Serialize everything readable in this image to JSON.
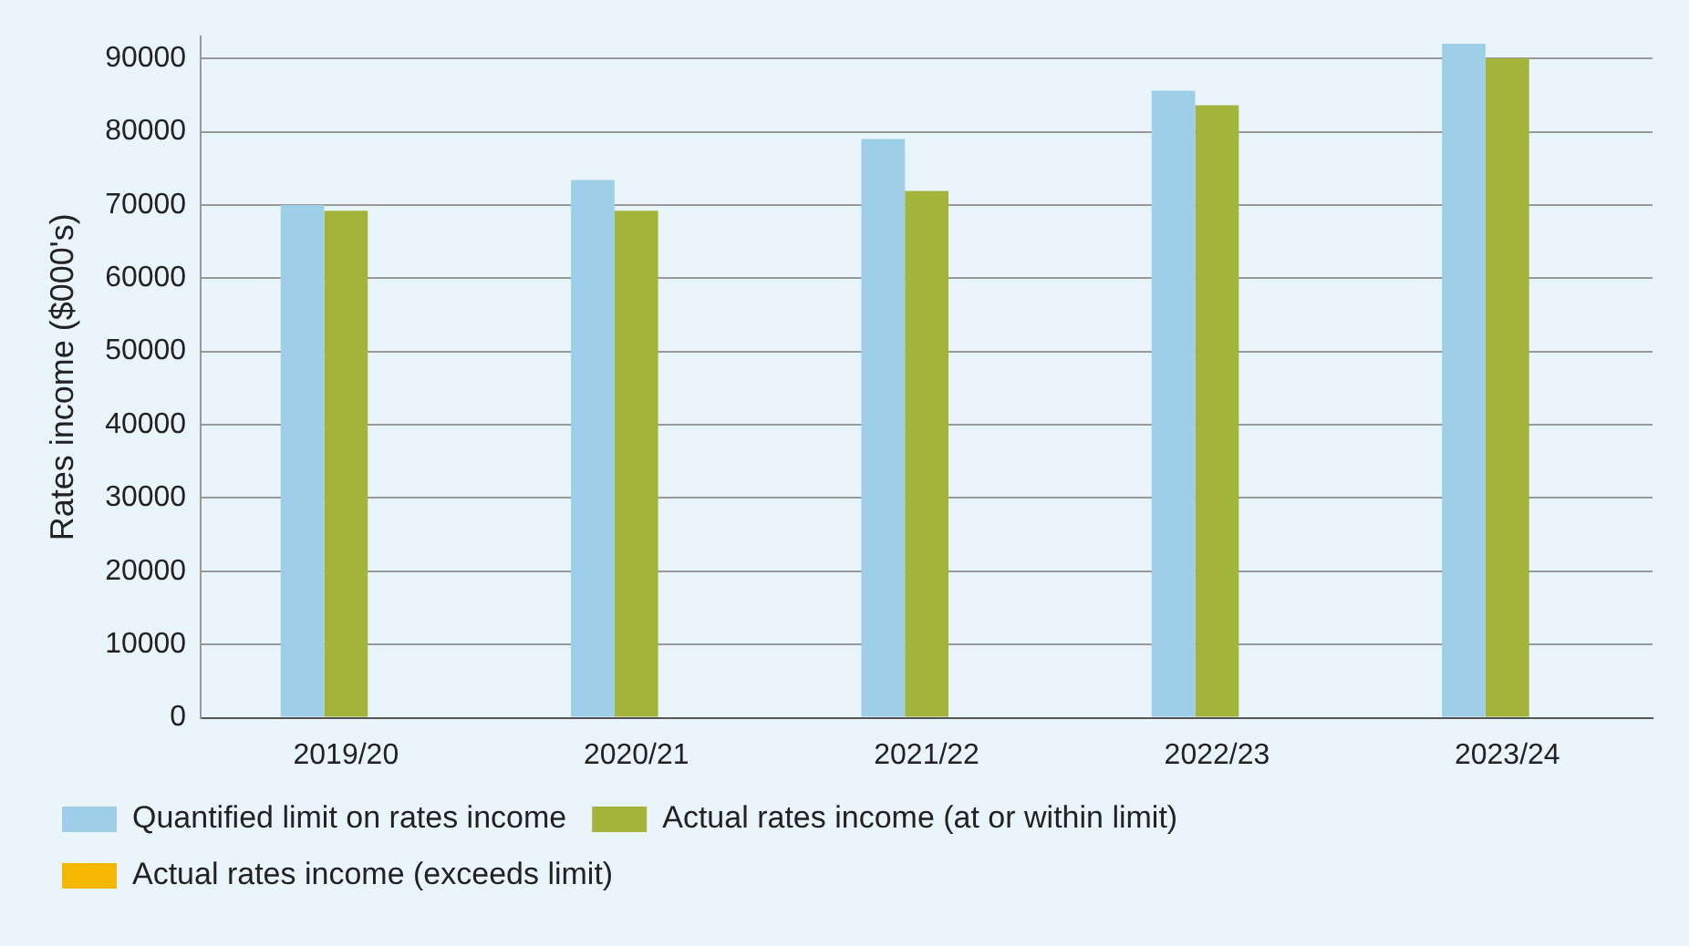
{
  "chart_data": {
    "type": "bar",
    "ylabel": "Rates income ($000's)",
    "categories": [
      "2019/20",
      "2020/21",
      "2021/22",
      "2022/23",
      "2023/24"
    ],
    "series": [
      {
        "name": "Quantified limit on rates income",
        "color": "#9dd0e8",
        "values": [
          70000,
          73400,
          79000,
          85600,
          92000
        ]
      },
      {
        "name": "Actual rates income (at or within limit)",
        "color": "#a3b43a",
        "values": [
          69200,
          69200,
          71900,
          83600,
          90000
        ]
      },
      {
        "name": "Actual rates income (exceeds limit)",
        "color": "#f5b800",
        "values": [
          null,
          null,
          null,
          null,
          null
        ]
      }
    ],
    "ylim": [
      0,
      93000
    ],
    "yticks": [
      0,
      10000,
      20000,
      30000,
      40000,
      50000,
      60000,
      70000,
      80000,
      90000
    ],
    "grid": "y",
    "legend": "bottom"
  }
}
